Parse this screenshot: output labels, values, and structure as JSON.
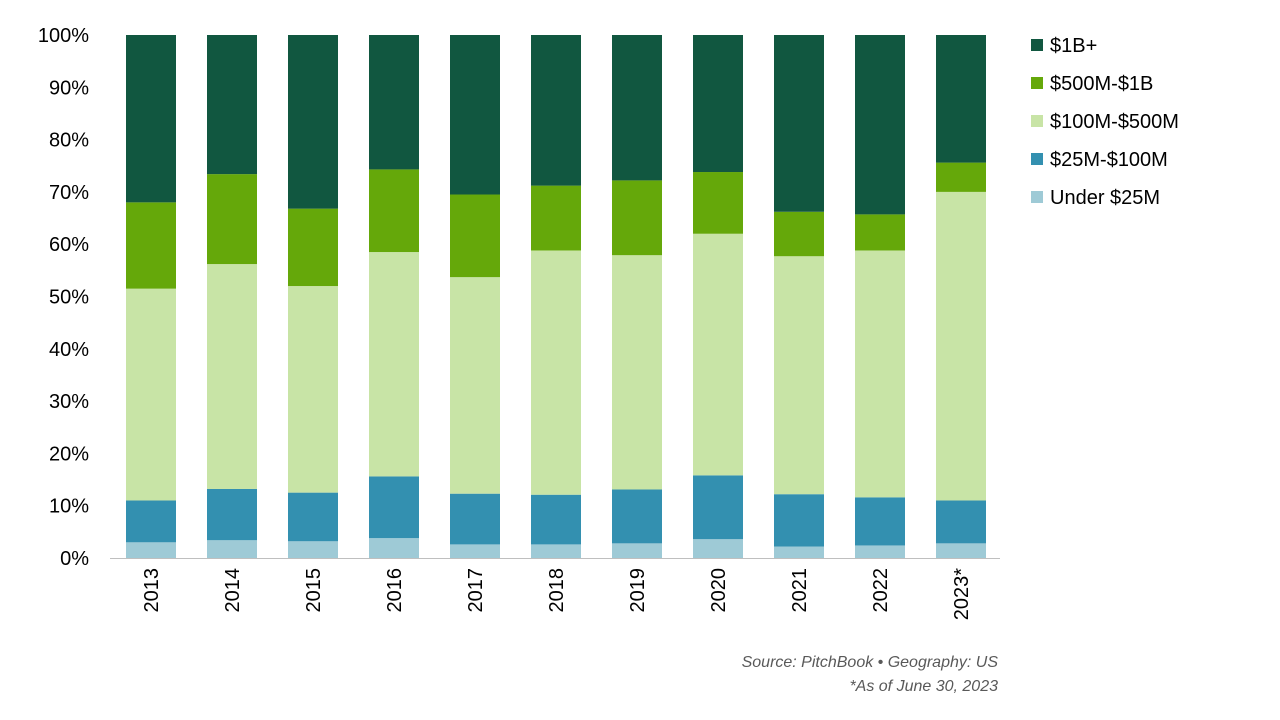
{
  "chart_data": {
    "type": "bar",
    "stacked": true,
    "normalized_percent": true,
    "categories": [
      "2013",
      "2014",
      "2015",
      "2016",
      "2017",
      "2018",
      "2019",
      "2020",
      "2021",
      "2022",
      "2023*"
    ],
    "series": [
      {
        "name": "Under $25M",
        "color": "#9ecad6",
        "values": [
          3.0,
          3.4,
          3.2,
          3.8,
          2.6,
          2.6,
          2.8,
          3.6,
          2.2,
          2.4,
          2.8
        ]
      },
      {
        "name": "$25M-$100M",
        "color": "#3390b0",
        "values": [
          8.0,
          9.8,
          9.3,
          11.8,
          9.7,
          9.5,
          10.3,
          12.2,
          10.0,
          9.2,
          8.2
        ]
      },
      {
        "name": "$100M-$500M",
        "color": "#c8e4a6",
        "values": [
          40.5,
          43.0,
          39.5,
          42.9,
          41.4,
          46.7,
          44.8,
          46.2,
          45.5,
          47.2,
          59.0
        ]
      },
      {
        "name": "$500M-$1B",
        "color": "#65a80a",
        "values": [
          16.5,
          17.2,
          14.8,
          15.8,
          15.8,
          12.4,
          14.3,
          11.8,
          8.5,
          6.9,
          5.6
        ]
      },
      {
        "name": "$1B+",
        "color": "#115740",
        "values": [
          32.0,
          26.6,
          33.2,
          25.7,
          30.5,
          28.8,
          27.8,
          26.2,
          33.8,
          34.3,
          24.4
        ]
      }
    ],
    "legend_order": [
      "$1B+",
      "$500M-$1B",
      "$100M-$500M",
      "$25M-$100M",
      "Under $25M"
    ],
    "ylim": [
      0,
      100
    ],
    "yticks": [
      "0%",
      "10%",
      "20%",
      "30%",
      "40%",
      "50%",
      "60%",
      "70%",
      "80%",
      "90%",
      "100%"
    ],
    "xlabel": "",
    "ylabel": "",
    "grid": false,
    "legend_position": "right"
  },
  "footer": {
    "source": "Source: PitchBook •  Geography: US",
    "note": "*As of June 30, 2023"
  }
}
